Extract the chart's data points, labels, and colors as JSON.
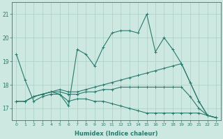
{
  "xlabel": "Humidex (Indice chaleur)",
  "x": [
    0,
    1,
    2,
    3,
    4,
    5,
    6,
    7,
    8,
    9,
    10,
    11,
    12,
    13,
    14,
    15,
    16,
    17,
    18,
    19,
    20,
    21,
    22,
    23
  ],
  "line1": [
    19.3,
    18.2,
    17.3,
    17.5,
    17.6,
    17.6,
    17.1,
    19.5,
    19.3,
    18.8,
    19.6,
    20.2,
    20.3,
    20.3,
    20.2,
    21.0,
    19.4,
    20.0,
    19.5,
    18.9,
    18.1,
    17.3,
    16.7,
    16.6
  ],
  "line2": [
    17.3,
    17.3,
    17.5,
    17.6,
    17.7,
    17.8,
    17.7,
    17.7,
    17.8,
    17.9,
    18.0,
    18.1,
    18.2,
    18.3,
    18.4,
    18.5,
    18.6,
    18.7,
    18.8,
    18.9,
    18.1,
    17.3,
    16.7,
    16.6
  ],
  "line3": [
    17.3,
    17.3,
    17.5,
    17.6,
    17.7,
    17.7,
    17.6,
    17.6,
    17.7,
    17.7,
    17.8,
    17.8,
    17.9,
    17.9,
    17.9,
    17.9,
    17.9,
    17.9,
    17.9,
    17.9,
    17.5,
    17.0,
    16.7,
    16.6
  ],
  "line4": [
    17.3,
    17.3,
    17.5,
    17.6,
    17.7,
    17.6,
    17.3,
    17.4,
    17.4,
    17.3,
    17.3,
    17.2,
    17.1,
    17.0,
    16.9,
    16.8,
    16.8,
    16.8,
    16.8,
    16.8,
    16.8,
    16.8,
    16.7,
    16.6
  ],
  "line_color": "#2a7a6e",
  "bg_color": "#cce8e0",
  "grid_color": "#aacfc6",
  "ylim": [
    16.5,
    21.5
  ],
  "xlim": [
    -0.5,
    23.5
  ],
  "yticks": [
    17,
    18,
    19,
    20,
    21
  ],
  "xticks": [
    0,
    1,
    2,
    3,
    4,
    5,
    6,
    7,
    8,
    9,
    10,
    11,
    12,
    13,
    14,
    15,
    16,
    17,
    18,
    19,
    20,
    21,
    22,
    23
  ]
}
